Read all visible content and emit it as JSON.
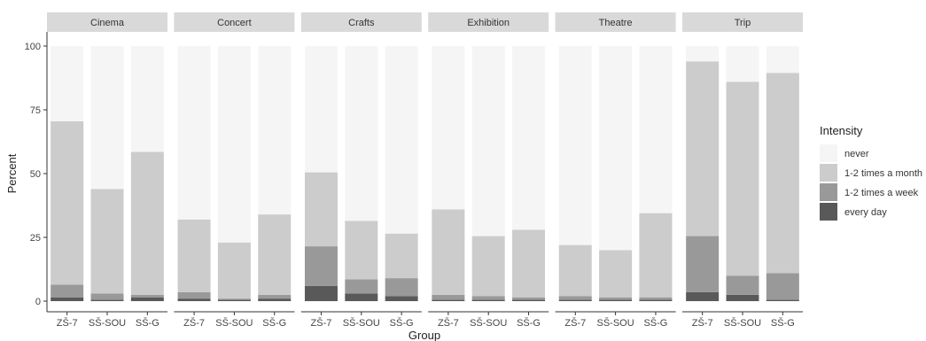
{
  "chart_data": {
    "type": "bar",
    "stacked": true,
    "facets": [
      "Cinema",
      "Concert",
      "Crafts",
      "Exhibition",
      "Theatre",
      "Trip"
    ],
    "groups": [
      "ZŠ-7",
      "SŠ-SOU",
      "SŠ-G"
    ],
    "xlabel": "Group",
    "ylabel": "Percent",
    "ylim": [
      0,
      100
    ],
    "yticks": [
      0,
      25,
      50,
      75,
      100
    ],
    "grid": false,
    "legend": {
      "title": "Intensity",
      "position": "right",
      "entries": [
        {
          "label": "never",
          "color": "#f5f5f5"
        },
        {
          "label": "1-2 times a month",
          "color": "#cccccc"
        },
        {
          "label": "1-2 times a week",
          "color": "#999999"
        },
        {
          "label": "every day",
          "color": "#595959"
        }
      ]
    },
    "series_order": [
      "every day",
      "1-2 times a week",
      "1-2 times a month",
      "never"
    ],
    "data": {
      "Cinema": {
        "ZŠ-7": {
          "every day": 1.5,
          "1-2 times a week": 5,
          "1-2 times a month": 64,
          "never": 29.5
        },
        "SŠ-SOU": {
          "every day": 0.5,
          "1-2 times a week": 2.5,
          "1-2 times a month": 41,
          "never": 56
        },
        "SŠ-G": {
          "every day": 1.5,
          "1-2 times a week": 1,
          "1-2 times a month": 56,
          "never": 41.5
        }
      },
      "Concert": {
        "ZŠ-7": {
          "every day": 1,
          "1-2 times a week": 2.5,
          "1-2 times a month": 28.5,
          "never": 68
        },
        "SŠ-SOU": {
          "every day": 0.5,
          "1-2 times a week": 0.5,
          "1-2 times a month": 22,
          "never": 77
        },
        "SŠ-G": {
          "every day": 1,
          "1-2 times a week": 1.5,
          "1-2 times a month": 31.5,
          "never": 66
        }
      },
      "Crafts": {
        "ZŠ-7": {
          "every day": 6,
          "1-2 times a week": 15.5,
          "1-2 times a month": 29,
          "never": 49.5
        },
        "SŠ-SOU": {
          "every day": 3,
          "1-2 times a week": 5.5,
          "1-2 times a month": 23,
          "never": 68.5
        },
        "SŠ-G": {
          "every day": 2,
          "1-2 times a week": 7,
          "1-2 times a month": 17.5,
          "never": 73.5
        }
      },
      "Exhibition": {
        "ZŠ-7": {
          "every day": 0.5,
          "1-2 times a week": 2,
          "1-2 times a month": 33.5,
          "never": 64
        },
        "SŠ-SOU": {
          "every day": 0.5,
          "1-2 times a week": 1.5,
          "1-2 times a month": 23.5,
          "never": 74.5
        },
        "SŠ-G": {
          "every day": 0.5,
          "1-2 times a week": 1,
          "1-2 times a month": 26.5,
          "never": 72
        }
      },
      "Theatre": {
        "ZŠ-7": {
          "every day": 0.5,
          "1-2 times a week": 1.5,
          "1-2 times a month": 20,
          "never": 78
        },
        "SŠ-SOU": {
          "every day": 0.5,
          "1-2 times a week": 1,
          "1-2 times a month": 18.5,
          "never": 80
        },
        "SŠ-G": {
          "every day": 0.5,
          "1-2 times a week": 1,
          "1-2 times a month": 33,
          "never": 65.5
        }
      },
      "Trip": {
        "ZŠ-7": {
          "every day": 3.5,
          "1-2 times a week": 22,
          "1-2 times a month": 68.5,
          "never": 6
        },
        "SŠ-SOU": {
          "every day": 2.5,
          "1-2 times a week": 7.5,
          "1-2 times a month": 76,
          "never": 14
        },
        "SŠ-G": {
          "every day": 0.5,
          "1-2 times a week": 10.5,
          "1-2 times a month": 78.5,
          "never": 10.5
        }
      }
    }
  }
}
